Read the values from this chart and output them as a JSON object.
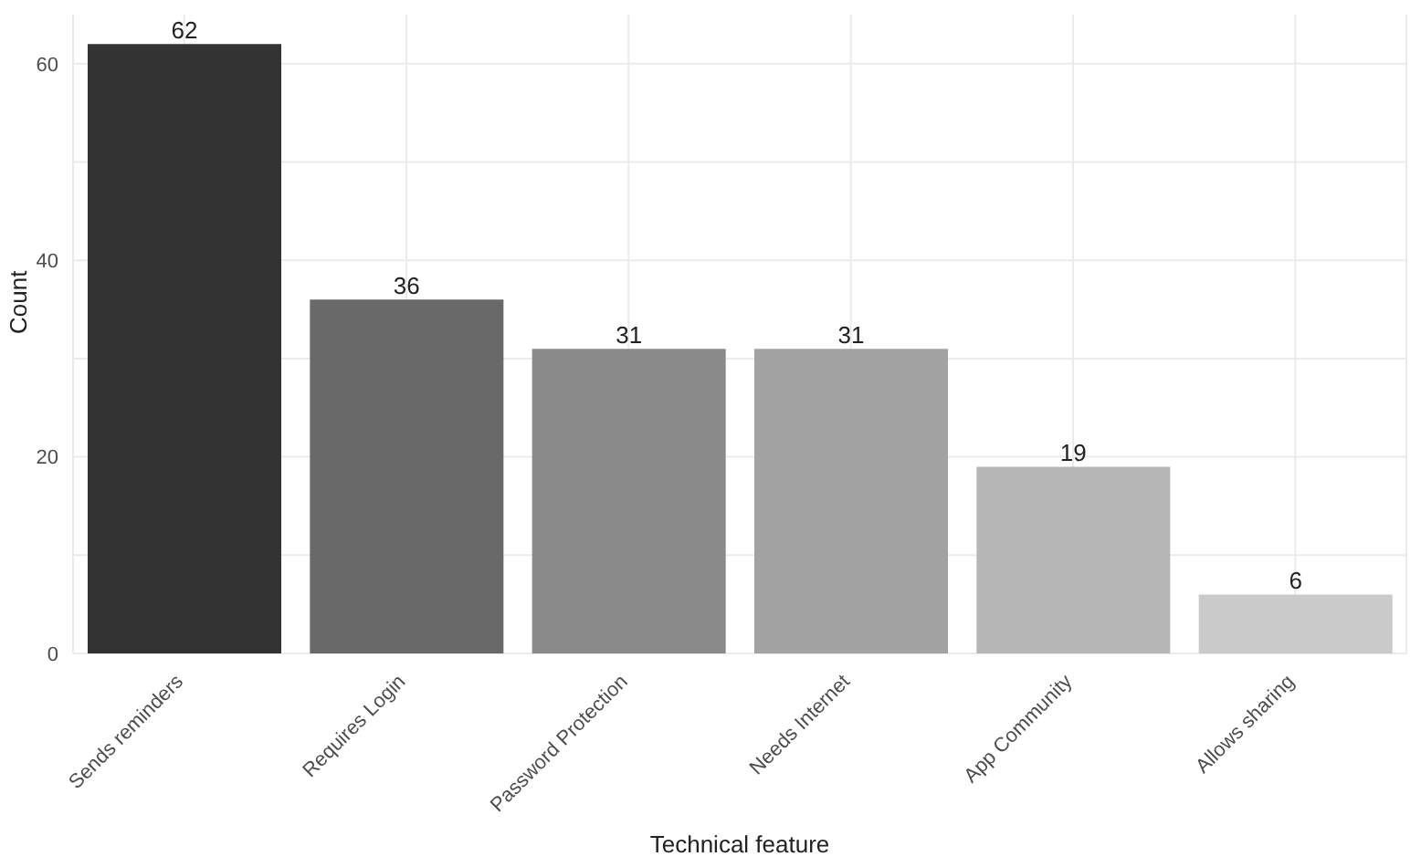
{
  "chart_data": {
    "type": "bar",
    "xlabel": "Technical feature",
    "ylabel": "Count",
    "categories": [
      "Sends reminders",
      "Requires Login",
      "Password Protection",
      "Needs Internet",
      "App Community",
      "Allows sharing"
    ],
    "values": [
      62,
      36,
      31,
      31,
      19,
      6
    ],
    "colors": [
      "#333333",
      "#696969",
      "#8a8a8a",
      "#a2a2a2",
      "#b6b6b6",
      "#cacaca"
    ],
    "ylim": [
      0,
      65
    ],
    "yticks": [
      0,
      {
        "value": 10,
        "label": null
      },
      20,
      {
        "value": 30,
        "label": null
      },
      40,
      {
        "value": 50,
        "label": null
      },
      60
    ],
    "grid": true,
    "data_labels": true
  }
}
